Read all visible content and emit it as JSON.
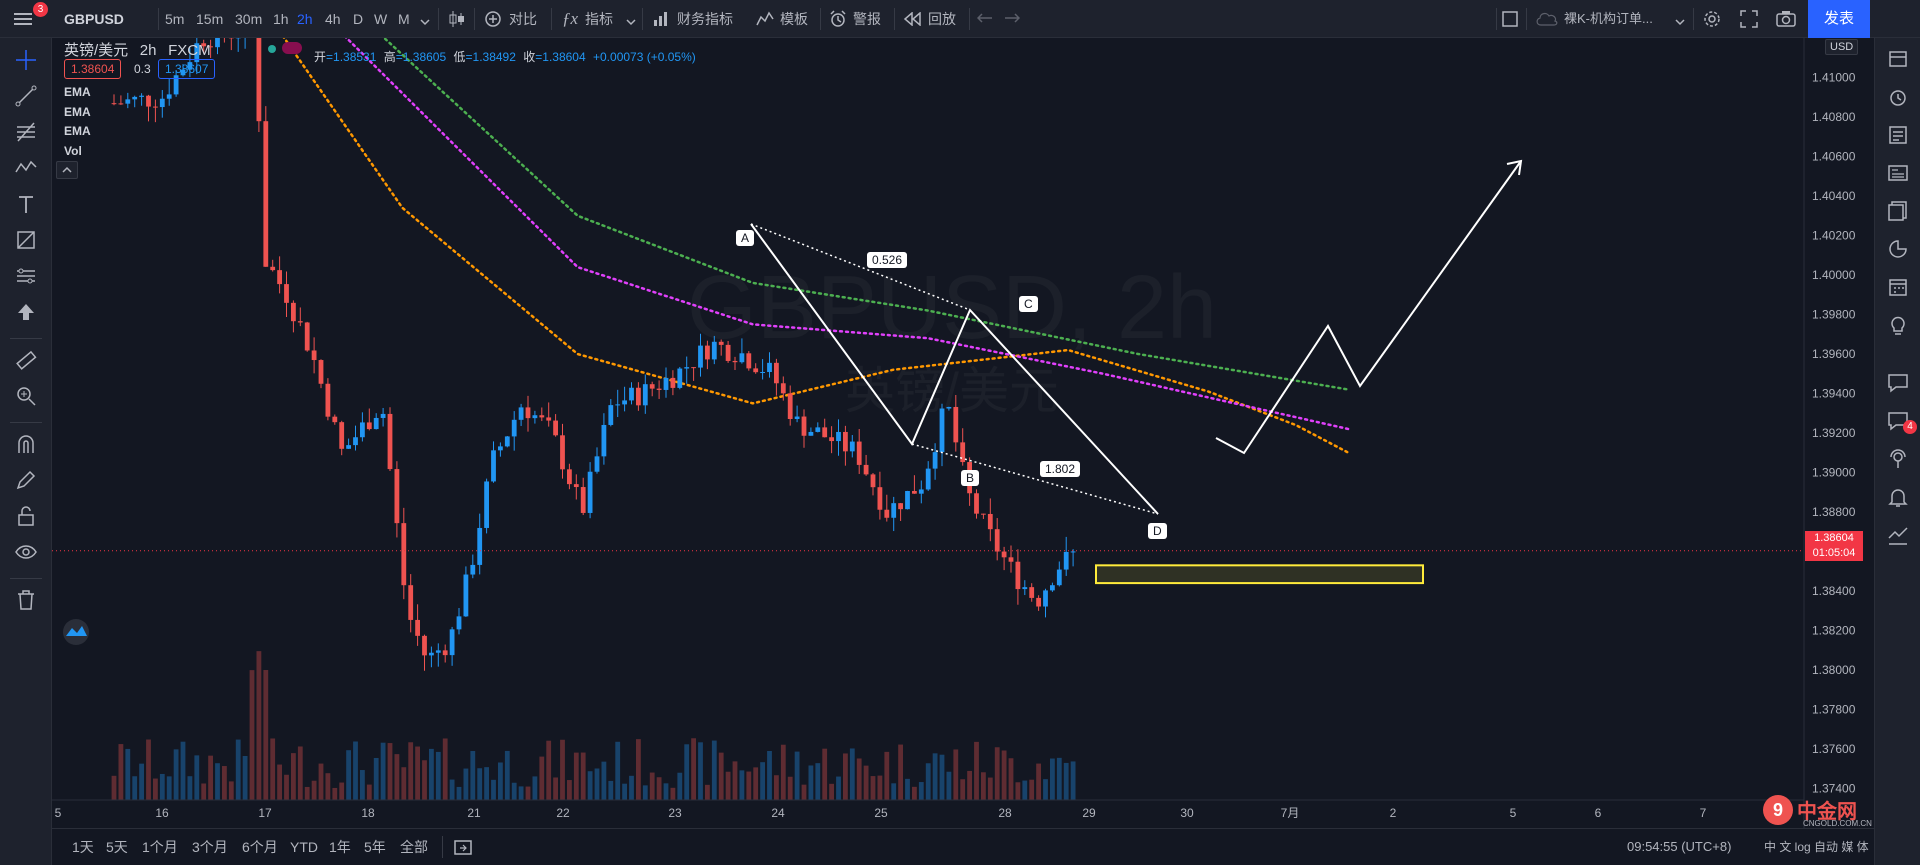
{
  "topbar": {
    "menu_badge": "3",
    "symbol": "GBPUSD",
    "intervals": [
      "5m",
      "15m",
      "30m",
      "1h",
      "2h",
      "4h",
      "D",
      "W",
      "M"
    ],
    "active_interval": "2h",
    "compare_label": "对比",
    "indicators_label": "指标",
    "financials_label": "财务指标",
    "templates_label": "模板",
    "alert_label": "警报",
    "replay_label": "回放",
    "layout_name": "裸K-机构订单...",
    "publish_label": "发表"
  },
  "legend": {
    "title": "英镑/美元",
    "interval": "2h",
    "source": "FXCM",
    "open_label": "开",
    "open": "=1.38531",
    "high_label": "高",
    "high": "=1.38605",
    "low_label": "低",
    "low": "=1.38492",
    "close_label": "收",
    "close": "=1.38604",
    "change": "+0.00073 (+0.05%)",
    "bid": "1.38604",
    "spread": "0.3",
    "ask": "1.38607",
    "indicators": [
      "EMA",
      "EMA",
      "EMA",
      "Vol"
    ]
  },
  "watermark": {
    "line1": "GBPUSD, 2h",
    "line2": "英镑/美元"
  },
  "price_axis": {
    "currency": "USD",
    "ticks": [
      "1.41000",
      "1.40800",
      "1.40600",
      "1.40400",
      "1.40200",
      "1.40000",
      "1.39800",
      "1.39600",
      "1.39400",
      "1.39200",
      "1.39000",
      "1.38800",
      "1.38600",
      "1.38400",
      "1.38200",
      "1.38000",
      "1.37800",
      "1.37600",
      "1.37400"
    ],
    "current_price": "1.38604",
    "countdown": "01:05:04"
  },
  "time_axis": {
    "ticks": [
      "5",
      "16",
      "17",
      "18",
      "21",
      "22",
      "23",
      "24",
      "25",
      "28",
      "29",
      "30",
      "7月",
      "2",
      "5",
      "6",
      "7"
    ]
  },
  "pattern": {
    "points": [
      "A",
      "B",
      "C",
      "D"
    ],
    "ratio_ab": "0.526",
    "ratio_bd": "1.802"
  },
  "bottombar": {
    "ranges": [
      "1天",
      "5天",
      "1个月",
      "3个月",
      "6个月",
      "YTD",
      "1年",
      "5年",
      "全部"
    ],
    "time": "09:54:55 (UTC+8)",
    "right_text": "中 文 log 自动 媒 体"
  },
  "right_sidebar": {
    "chat_badge": "4"
  },
  "watermark_logo": {
    "name": "中金网",
    "url": "CNGOLD.COM.CN"
  },
  "colors": {
    "up": "#2196f3",
    "down": "#ef5350",
    "ema_fast": "#ff9800",
    "ema_mid": "#e040fb",
    "ema_slow": "#4caf50",
    "zone": "#ffeb3b",
    "accent": "#2962ff"
  },
  "chart_data": {
    "type": "candlestick",
    "symbol": "GBPUSD",
    "timeframe": "2h",
    "ylim": [
      1.372,
      1.412
    ],
    "highlight_zone": [
      1.3844,
      1.3853
    ],
    "ema_fast": [
      [
        0.12,
        1.4136
      ],
      [
        0.2,
        1.4034
      ],
      [
        0.3,
        1.396
      ],
      [
        0.4,
        1.3935
      ],
      [
        0.48,
        1.3952
      ],
      [
        0.58,
        1.3962
      ],
      [
        0.66,
        1.3941
      ],
      [
        0.71,
        1.3924
      ],
      [
        0.74,
        1.391
      ]
    ],
    "ema_mid": [
      [
        0.15,
        1.4136
      ],
      [
        0.3,
        1.4004
      ],
      [
        0.4,
        1.3975
      ],
      [
        0.5,
        1.3968
      ],
      [
        0.6,
        1.395
      ],
      [
        0.7,
        1.393
      ],
      [
        0.74,
        1.3922
      ]
    ],
    "ema_slow": [
      [
        0.17,
        1.4136
      ],
      [
        0.3,
        1.403
      ],
      [
        0.4,
        1.3996
      ],
      [
        0.5,
        1.3982
      ],
      [
        0.62,
        1.396
      ],
      [
        0.74,
        1.3942
      ]
    ]
  }
}
